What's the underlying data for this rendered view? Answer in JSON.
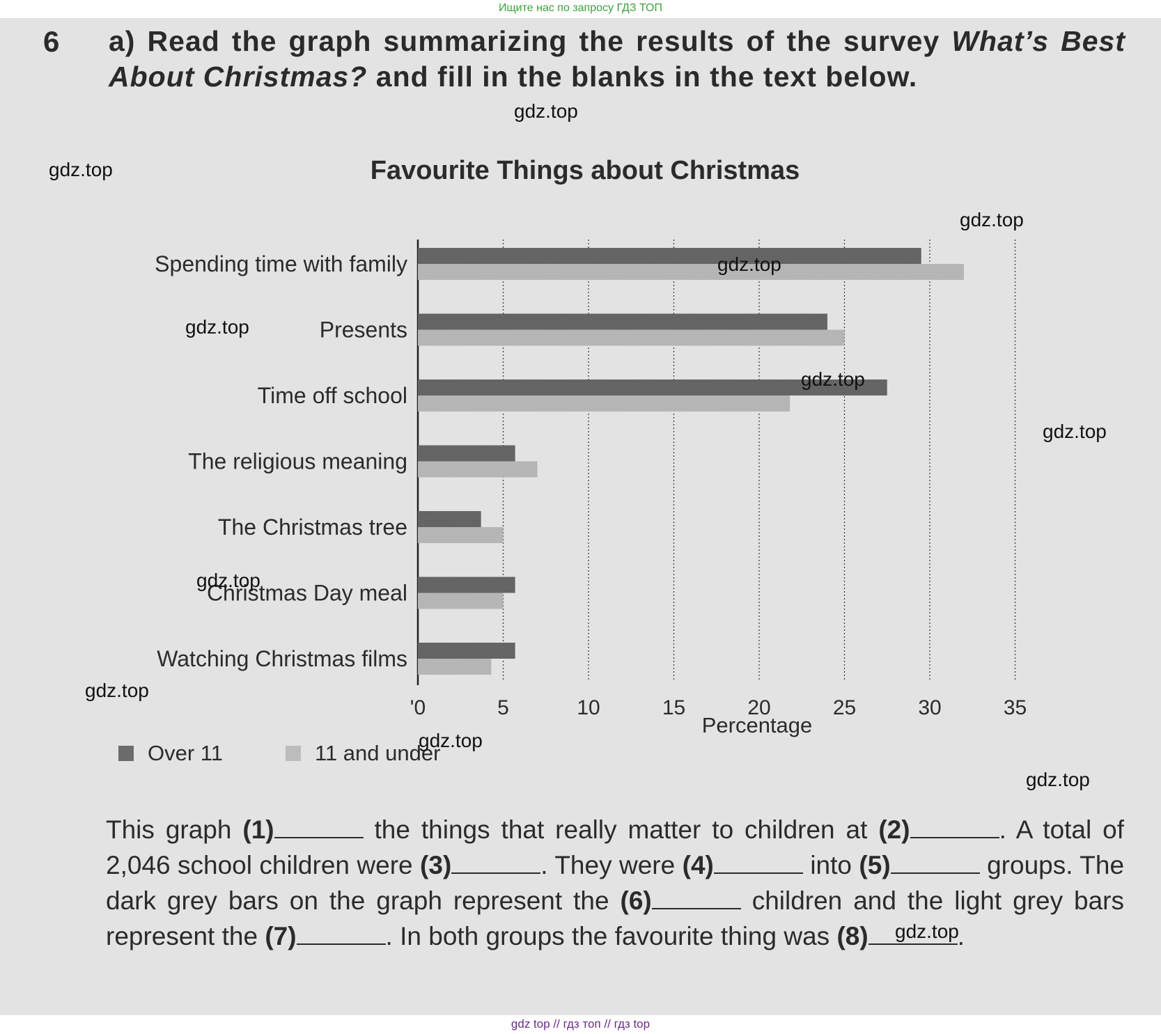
{
  "banner_top": "Ищите нас по запросу ГДЗ ТОП",
  "banner_bottom": "gdz top  //  гдз топ  //  гдз top",
  "exercise": {
    "number": "6",
    "instruction_part1": "a) Read the graph summarizing the results of the survey",
    "instruction_italic": "What’s Best About Christmas?",
    "instruction_part2": "and fill in the blanks in the text below."
  },
  "watermark": "gdz.top",
  "chart_data": {
    "type": "bar",
    "orientation": "horizontal",
    "title": "Favourite Things about Christmas",
    "xlabel": "Percentage",
    "ylabel": "",
    "xlim": [
      0,
      35
    ],
    "xticks": [
      "'0",
      "5",
      "10",
      "15",
      "20",
      "25",
      "30",
      "35"
    ],
    "grid": true,
    "legend_position": "bottom-left",
    "categories": [
      "Spending time with family",
      "Presents",
      "Time off school",
      "The religious meaning",
      "The Christmas tree",
      "Christmas Day meal",
      "Watching Christmas films"
    ],
    "series": [
      {
        "name": "Over 11",
        "color": "#6c6c6c",
        "values": [
          29.5,
          24,
          27.5,
          5.7,
          3.7,
          5.7,
          5.7
        ]
      },
      {
        "name": "11 and under",
        "color": "#bcbcbc",
        "values": [
          32,
          25,
          21.8,
          7,
          5,
          5,
          4.3
        ]
      }
    ]
  },
  "paragraph": {
    "s1": "This graph",
    "n1": "(1)",
    "s2": "the things that really matter to children at",
    "n2": "(2)",
    "s3": ". A total of 2,046 school children were",
    "n3": "(3)",
    "s4": ". They were",
    "n4": "(4)",
    "s5": "into",
    "n5": "(5)",
    "s6": "groups. The dark grey bars on the graph represent the",
    "n6": "(6)",
    "s7": "children and the light grey bars represent the",
    "n7": "(7)",
    "s8": ". In both groups the favourite thing was",
    "n8": "(8)",
    "s9": "."
  }
}
